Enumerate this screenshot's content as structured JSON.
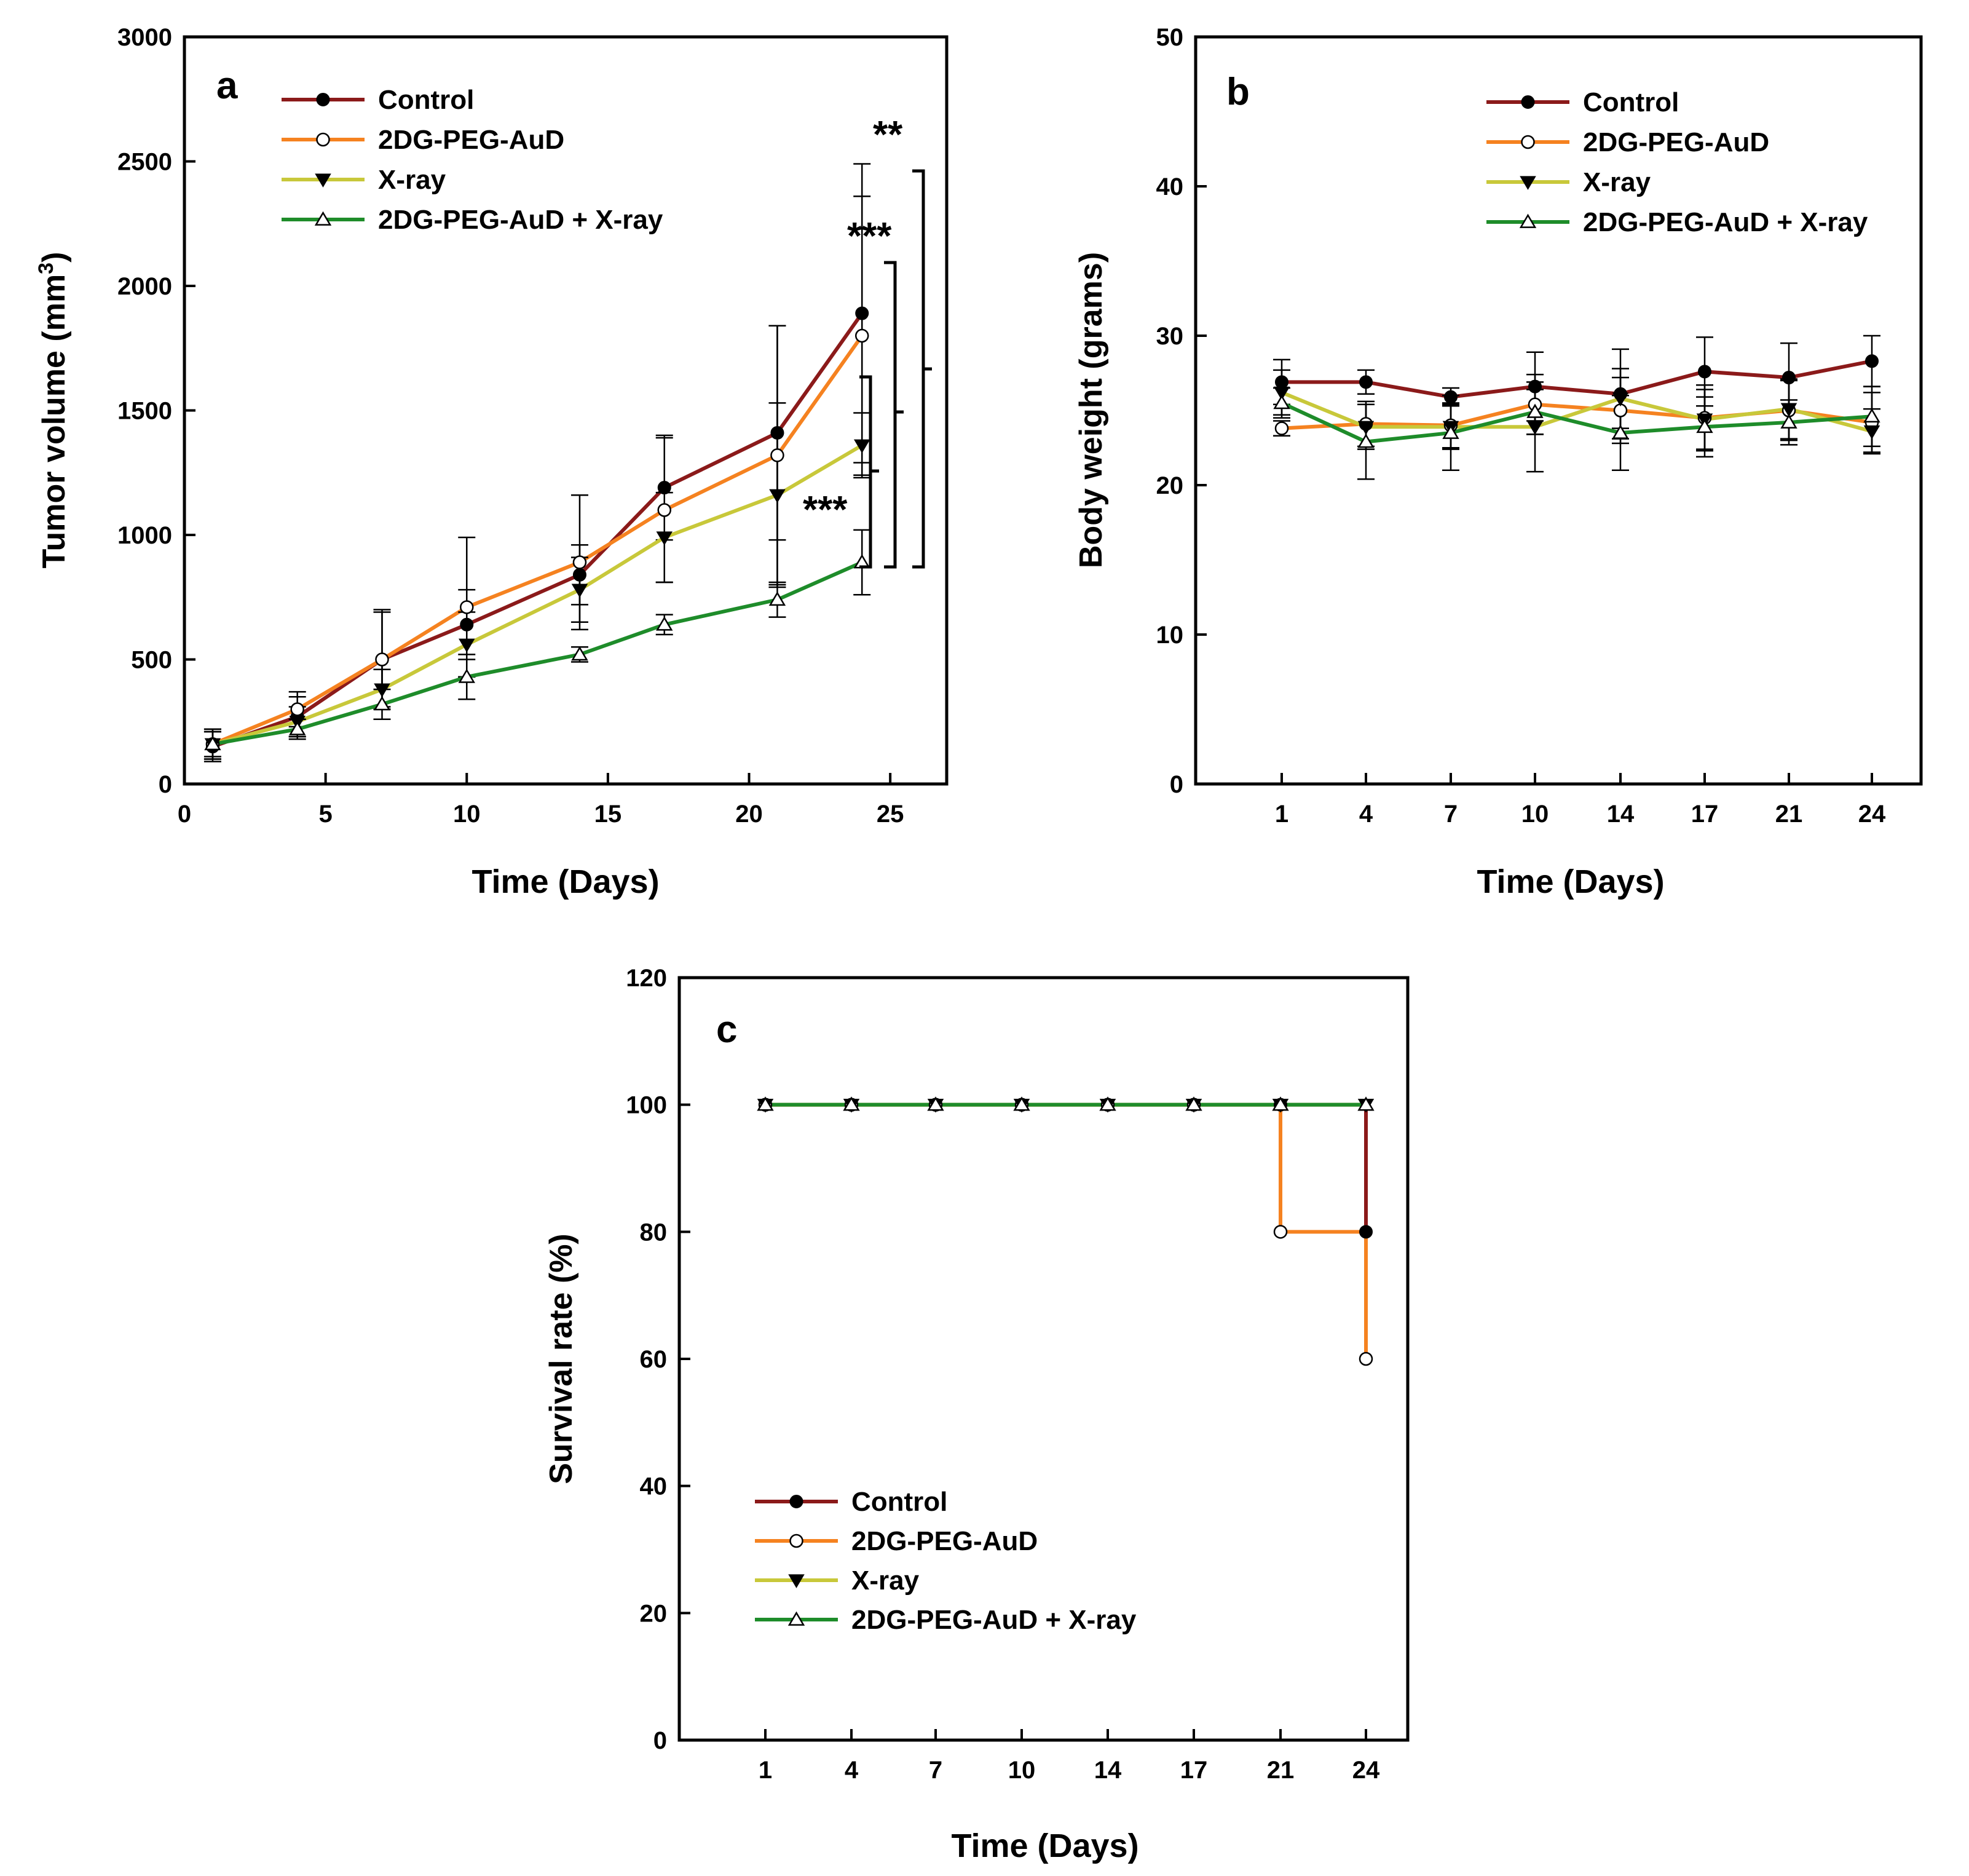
{
  "colors": {
    "Control": "#8b1a1a",
    "2DG-PEG-AuD": "#f58220",
    "X-ray": "#c8c83a",
    "2DG-PEG-AuD + X-ray": "#1e8c2a"
  },
  "chart_data": [
    {
      "panel": "a",
      "type": "line",
      "xlabel": "Time (Days)",
      "ylabel_main": "Tumor volume (mm",
      "ylabel_sup": "3",
      "ylabel_close": ")",
      "xlim": [
        0,
        27
      ],
      "ylim": [
        0,
        3000
      ],
      "xticks": [
        0,
        5,
        10,
        15,
        20,
        25
      ],
      "yticks": [
        0,
        500,
        1000,
        1500,
        2000,
        2500,
        3000
      ],
      "legend_position": "top-left",
      "series": [
        {
          "name": "Control",
          "marker": "circle-filled",
          "x": [
            1,
            4,
            7,
            10,
            14,
            17,
            21,
            24
          ],
          "y": [
            150,
            270,
            500,
            640,
            840,
            1190,
            1410,
            1890
          ],
          "err": [
            60,
            80,
            190,
            140,
            120,
            210,
            430,
            600
          ]
        },
        {
          "name": "2DG-PEG-AuD",
          "marker": "circle-open",
          "x": [
            1,
            4,
            7,
            10,
            14,
            17,
            21,
            24
          ],
          "y": [
            160,
            300,
            500,
            710,
            890,
            1100,
            1320,
            1800
          ],
          "err": [
            60,
            70,
            200,
            280,
            270,
            290,
            520,
            560
          ]
        },
        {
          "name": "X-ray",
          "marker": "triangle-down-filled",
          "x": [
            1,
            4,
            7,
            10,
            14,
            17,
            21,
            24
          ],
          "y": [
            160,
            250,
            380,
            560,
            780,
            990,
            1160,
            1360
          ],
          "err": [
            60,
            60,
            80,
            130,
            130,
            180,
            370,
            130
          ]
        },
        {
          "name": "2DG-PEG-AuD + X-ray",
          "marker": "triangle-up-open",
          "x": [
            1,
            4,
            7,
            10,
            14,
            17,
            21,
            24
          ],
          "y": [
            160,
            220,
            320,
            430,
            520,
            640,
            740,
            890
          ],
          "err": [
            50,
            40,
            60,
            90,
            30,
            40,
            70,
            130
          ]
        }
      ],
      "annotations": [
        {
          "label": "**",
          "bracket_from": "Control",
          "bracket_to": "2DG-PEG-AuD + X-ray"
        },
        {
          "label": "***",
          "bracket_from": "2DG-PEG-AuD",
          "bracket_to": "2DG-PEG-AuD + X-ray"
        },
        {
          "label": "***",
          "bracket_from": "X-ray",
          "bracket_to": "2DG-PEG-AuD + X-ray"
        }
      ]
    },
    {
      "panel": "b",
      "type": "line",
      "xlabel": "Time (Days)",
      "ylabel": "Body weight (grams)",
      "categories": [
        "1",
        "4",
        "7",
        "10",
        "14",
        "17",
        "21",
        "24"
      ],
      "ylim": [
        0,
        50
      ],
      "yticks": [
        0,
        10,
        20,
        30,
        40,
        50
      ],
      "legend_position": "top-right",
      "series": [
        {
          "name": "Control",
          "marker": "circle-filled",
          "values": [
            26.9,
            26.9,
            25.9,
            26.6,
            26.1,
            27.6,
            27.2,
            28.3
          ],
          "err": [
            1.5,
            0.8,
            0.6,
            2.3,
            3.0,
            2.3,
            2.3,
            1.7
          ]
        },
        {
          "name": "2DG-PEG-AuD",
          "marker": "circle-open",
          "values": [
            23.8,
            24.1,
            24.0,
            25.4,
            25.0,
            24.5,
            25.0,
            24.2
          ],
          "err": [
            0.5,
            1.5,
            1.5,
            2.0,
            2.2,
            2.2,
            2.0,
            2.0
          ]
        },
        {
          "name": "X-ray",
          "marker": "triangle-down-filled",
          "values": [
            26.2,
            23.9,
            23.9,
            23.9,
            25.8,
            24.4,
            25.1,
            23.6
          ],
          "err": [
            1.5,
            1.5,
            1.5,
            3.0,
            2.0,
            2.0,
            2.0,
            1.5
          ]
        },
        {
          "name": "2DG-PEG-AuD + X-ray",
          "marker": "triangle-up-open",
          "values": [
            25.5,
            22.9,
            23.5,
            24.9,
            23.5,
            23.9,
            24.2,
            24.6
          ],
          "err": [
            1.0,
            2.5,
            2.5,
            1.5,
            2.5,
            2.0,
            1.5,
            2.0
          ]
        }
      ]
    },
    {
      "panel": "c",
      "type": "line",
      "step": true,
      "xlabel": "Time (Days)",
      "ylabel": "Survival rate (%)",
      "categories": [
        "1",
        "4",
        "7",
        "10",
        "14",
        "17",
        "21",
        "24"
      ],
      "ylim": [
        0,
        120
      ],
      "yticks": [
        0,
        20,
        40,
        60,
        80,
        100,
        120
      ],
      "legend_position": "bottom-left",
      "series": [
        {
          "name": "Control",
          "marker": "circle-filled",
          "values": [
            100,
            100,
            100,
            100,
            100,
            100,
            100,
            80
          ]
        },
        {
          "name": "2DG-PEG-AuD",
          "marker": "circle-open",
          "values": [
            100,
            100,
            100,
            100,
            100,
            100,
            80,
            60
          ]
        },
        {
          "name": "X-ray",
          "marker": "triangle-down-filled",
          "values": [
            100,
            100,
            100,
            100,
            100,
            100,
            100,
            100
          ]
        },
        {
          "name": "2DG-PEG-AuD + X-ray",
          "marker": "triangle-up-open",
          "values": [
            100,
            100,
            100,
            100,
            100,
            100,
            100,
            100
          ]
        }
      ]
    }
  ]
}
